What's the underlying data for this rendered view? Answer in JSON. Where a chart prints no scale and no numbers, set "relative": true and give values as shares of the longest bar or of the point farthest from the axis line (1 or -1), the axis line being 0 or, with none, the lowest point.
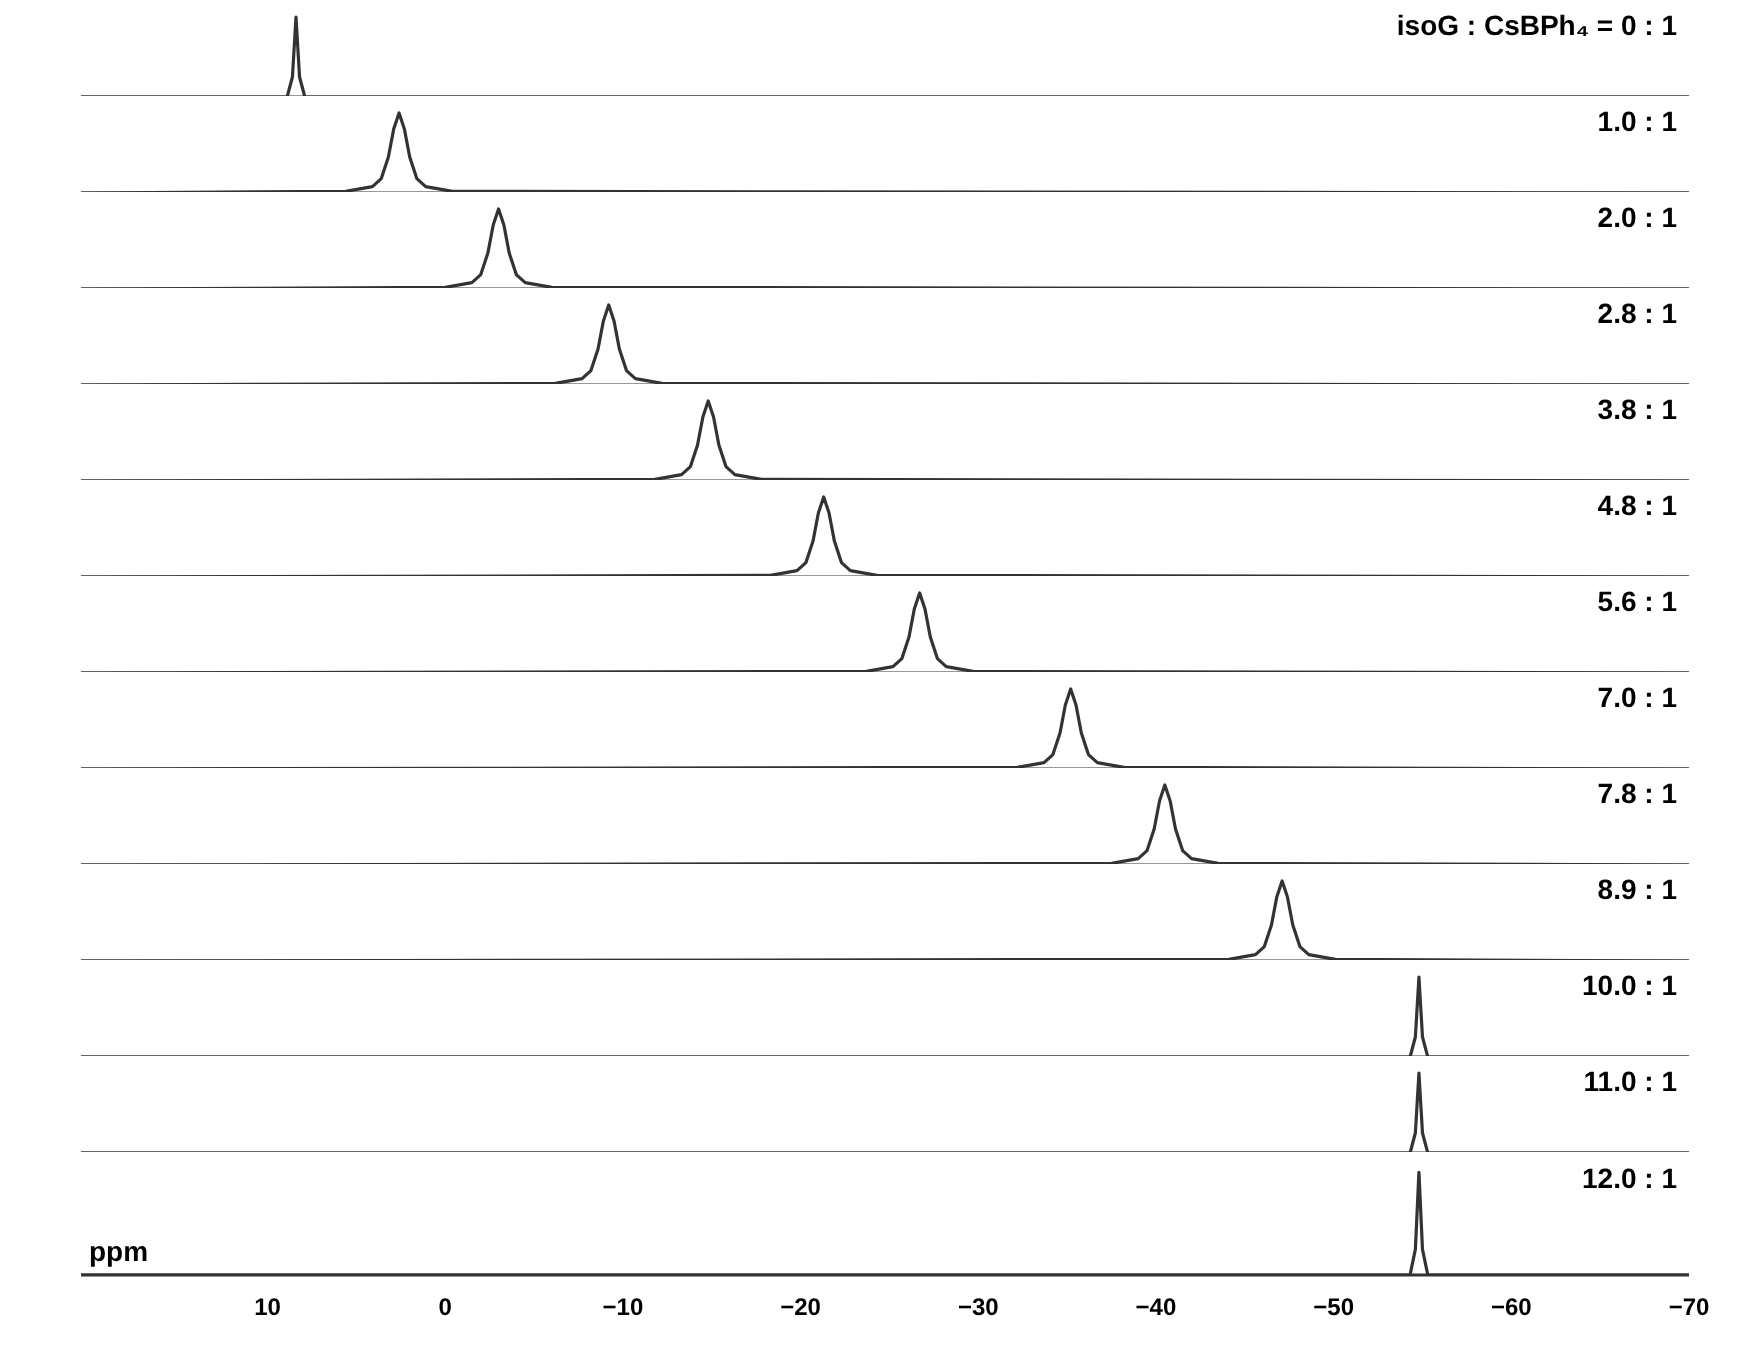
{
  "chart_data": [
    {
      "type": "line",
      "title": "isoG : CsBPh₄ = 0 : 1",
      "relative": true,
      "xlim": [
        20.5,
        -70
      ],
      "tick_labels": false,
      "color": "#333333",
      "x": [
        20.5,
        8.9,
        8.6,
        8.4,
        8.2,
        7.9,
        -70
      ],
      "values": [
        0,
        0,
        0.25,
        1,
        0.25,
        0,
        0
      ]
    },
    {
      "type": "line",
      "title": "1.0 : 1",
      "relative": true,
      "xlim": [
        20.5,
        -70
      ],
      "tick_labels": false,
      "color": "#333333",
      "x": [
        20.5,
        5.6,
        4.1,
        3.6,
        3.2,
        2.9,
        2.6,
        2.3,
        2.0,
        1.6,
        1.1,
        -0.4,
        -70
      ],
      "values": [
        0,
        0.02,
        0.08,
        0.18,
        0.45,
        0.8,
        1,
        0.8,
        0.45,
        0.18,
        0.08,
        0.02,
        0
      ]
    },
    {
      "type": "line",
      "title": "2.0 : 1",
      "relative": true,
      "xlim": [
        20.5,
        -70
      ],
      "tick_labels": false,
      "color": "#333333",
      "x": [
        20.5,
        0,
        -1.5,
        -2,
        -2.4,
        -2.7,
        -3,
        -3.3,
        -3.6,
        -4,
        -4.5,
        -6,
        -70
      ],
      "values": [
        0,
        0.02,
        0.08,
        0.18,
        0.45,
        0.8,
        1,
        0.8,
        0.45,
        0.18,
        0.08,
        0.02,
        0
      ]
    },
    {
      "type": "line",
      "title": "2.8 : 1",
      "relative": true,
      "xlim": [
        20.5,
        -70
      ],
      "tick_labels": false,
      "color": "#333333",
      "x": [
        20.5,
        -6.2,
        -7.7,
        -8.2,
        -8.6,
        -8.9,
        -9.2,
        -9.5,
        -9.8,
        -10.2,
        -10.7,
        -12.2,
        -70
      ],
      "values": [
        0,
        0.02,
        0.08,
        0.18,
        0.45,
        0.8,
        1,
        0.8,
        0.45,
        0.18,
        0.08,
        0.02,
        0
      ]
    },
    {
      "type": "line",
      "title": "3.8 : 1",
      "relative": true,
      "xlim": [
        20.5,
        -70
      ],
      "tick_labels": false,
      "color": "#333333",
      "x": [
        20.5,
        -11.8,
        -13.3,
        -13.8,
        -14.2,
        -14.5,
        -14.8,
        -15.1,
        -15.4,
        -15.8,
        -16.3,
        -17.8,
        -70
      ],
      "values": [
        0,
        0.02,
        0.08,
        0.18,
        0.45,
        0.8,
        1,
        0.8,
        0.45,
        0.18,
        0.08,
        0.02,
        0
      ]
    },
    {
      "type": "line",
      "title": "4.8 : 1",
      "relative": true,
      "xlim": [
        20.5,
        -70
      ],
      "tick_labels": false,
      "color": "#333333",
      "x": [
        20.5,
        -18.3,
        -19.8,
        -20.3,
        -20.7,
        -21,
        -21.3,
        -21.6,
        -21.9,
        -22.3,
        -22.8,
        -24.3,
        -70
      ],
      "values": [
        0,
        0.02,
        0.08,
        0.18,
        0.45,
        0.8,
        1,
        0.8,
        0.45,
        0.18,
        0.08,
        0.02,
        0
      ]
    },
    {
      "type": "line",
      "title": "5.6 : 1",
      "relative": true,
      "xlim": [
        20.5,
        -70
      ],
      "tick_labels": false,
      "color": "#333333",
      "x": [
        20.5,
        -23.7,
        -25.2,
        -25.7,
        -26.1,
        -26.4,
        -26.7,
        -27,
        -27.3,
        -27.7,
        -28.2,
        -29.7,
        -70
      ],
      "values": [
        0,
        0.02,
        0.08,
        0.18,
        0.45,
        0.8,
        1,
        0.8,
        0.45,
        0.18,
        0.08,
        0.02,
        0
      ]
    },
    {
      "type": "line",
      "title": "7.0 : 1",
      "relative": true,
      "xlim": [
        20.5,
        -70
      ],
      "tick_labels": false,
      "color": "#333333",
      "x": [
        20.5,
        -32.2,
        -33.7,
        -34.2,
        -34.6,
        -34.9,
        -35.2,
        -35.5,
        -35.8,
        -36.2,
        -36.7,
        -38.2,
        -70
      ],
      "values": [
        0,
        0.02,
        0.08,
        0.18,
        0.45,
        0.8,
        1,
        0.8,
        0.45,
        0.18,
        0.08,
        0.02,
        0
      ]
    },
    {
      "type": "line",
      "title": "7.8 : 1",
      "relative": true,
      "xlim": [
        20.5,
        -70
      ],
      "tick_labels": false,
      "color": "#333333",
      "x": [
        20.5,
        -37.5,
        -39,
        -39.5,
        -39.9,
        -40.2,
        -40.5,
        -40.8,
        -41.1,
        -41.5,
        -42,
        -43.5,
        -70
      ],
      "values": [
        0,
        0.02,
        0.08,
        0.18,
        0.45,
        0.8,
        1,
        0.8,
        0.45,
        0.18,
        0.08,
        0.02,
        0
      ]
    },
    {
      "type": "line",
      "title": "8.9 : 1",
      "relative": true,
      "xlim": [
        20.5,
        -70
      ],
      "tick_labels": false,
      "color": "#333333",
      "x": [
        20.5,
        -44.1,
        -45.6,
        -46.1,
        -46.5,
        -46.8,
        -47.1,
        -47.4,
        -47.7,
        -48.1,
        -48.6,
        -50.1,
        -70
      ],
      "values": [
        0,
        0.02,
        0.08,
        0.18,
        0.45,
        0.8,
        1,
        0.8,
        0.45,
        0.18,
        0.08,
        0.02,
        0
      ]
    },
    {
      "type": "line",
      "title": "10.0 : 1",
      "relative": true,
      "xlim": [
        20.5,
        -70
      ],
      "tick_labels": false,
      "color": "#333333",
      "x": [
        20.5,
        -54.3,
        -54.6,
        -54.8,
        -55,
        -55.3,
        -70
      ],
      "values": [
        0,
        0,
        0.25,
        1,
        0.25,
        0,
        0
      ]
    },
    {
      "type": "line",
      "title": "11.0 : 1",
      "relative": true,
      "xlim": [
        20.5,
        -70
      ],
      "tick_labels": false,
      "color": "#333333",
      "x": [
        20.5,
        -54.3,
        -54.6,
        -54.8,
        -55,
        -55.3,
        -70
      ],
      "values": [
        0,
        0,
        0.25,
        1,
        0.25,
        0,
        0
      ]
    },
    {
      "type": "line",
      "title": "12.0 : 1",
      "relative": true,
      "xlim": [
        20.5,
        -70
      ],
      "tick_labels": "x",
      "xlabel": "ppm",
      "xticks": [
        10,
        0,
        -10,
        -20,
        -30,
        -40,
        -50,
        -60,
        -70
      ],
      "color": "#333333",
      "x": [
        20.5,
        -54.3,
        -54.6,
        -54.8,
        -55,
        -55.3,
        -70
      ],
      "values": [
        0,
        0,
        0.25,
        1,
        0.25,
        0,
        0
      ]
    }
  ]
}
